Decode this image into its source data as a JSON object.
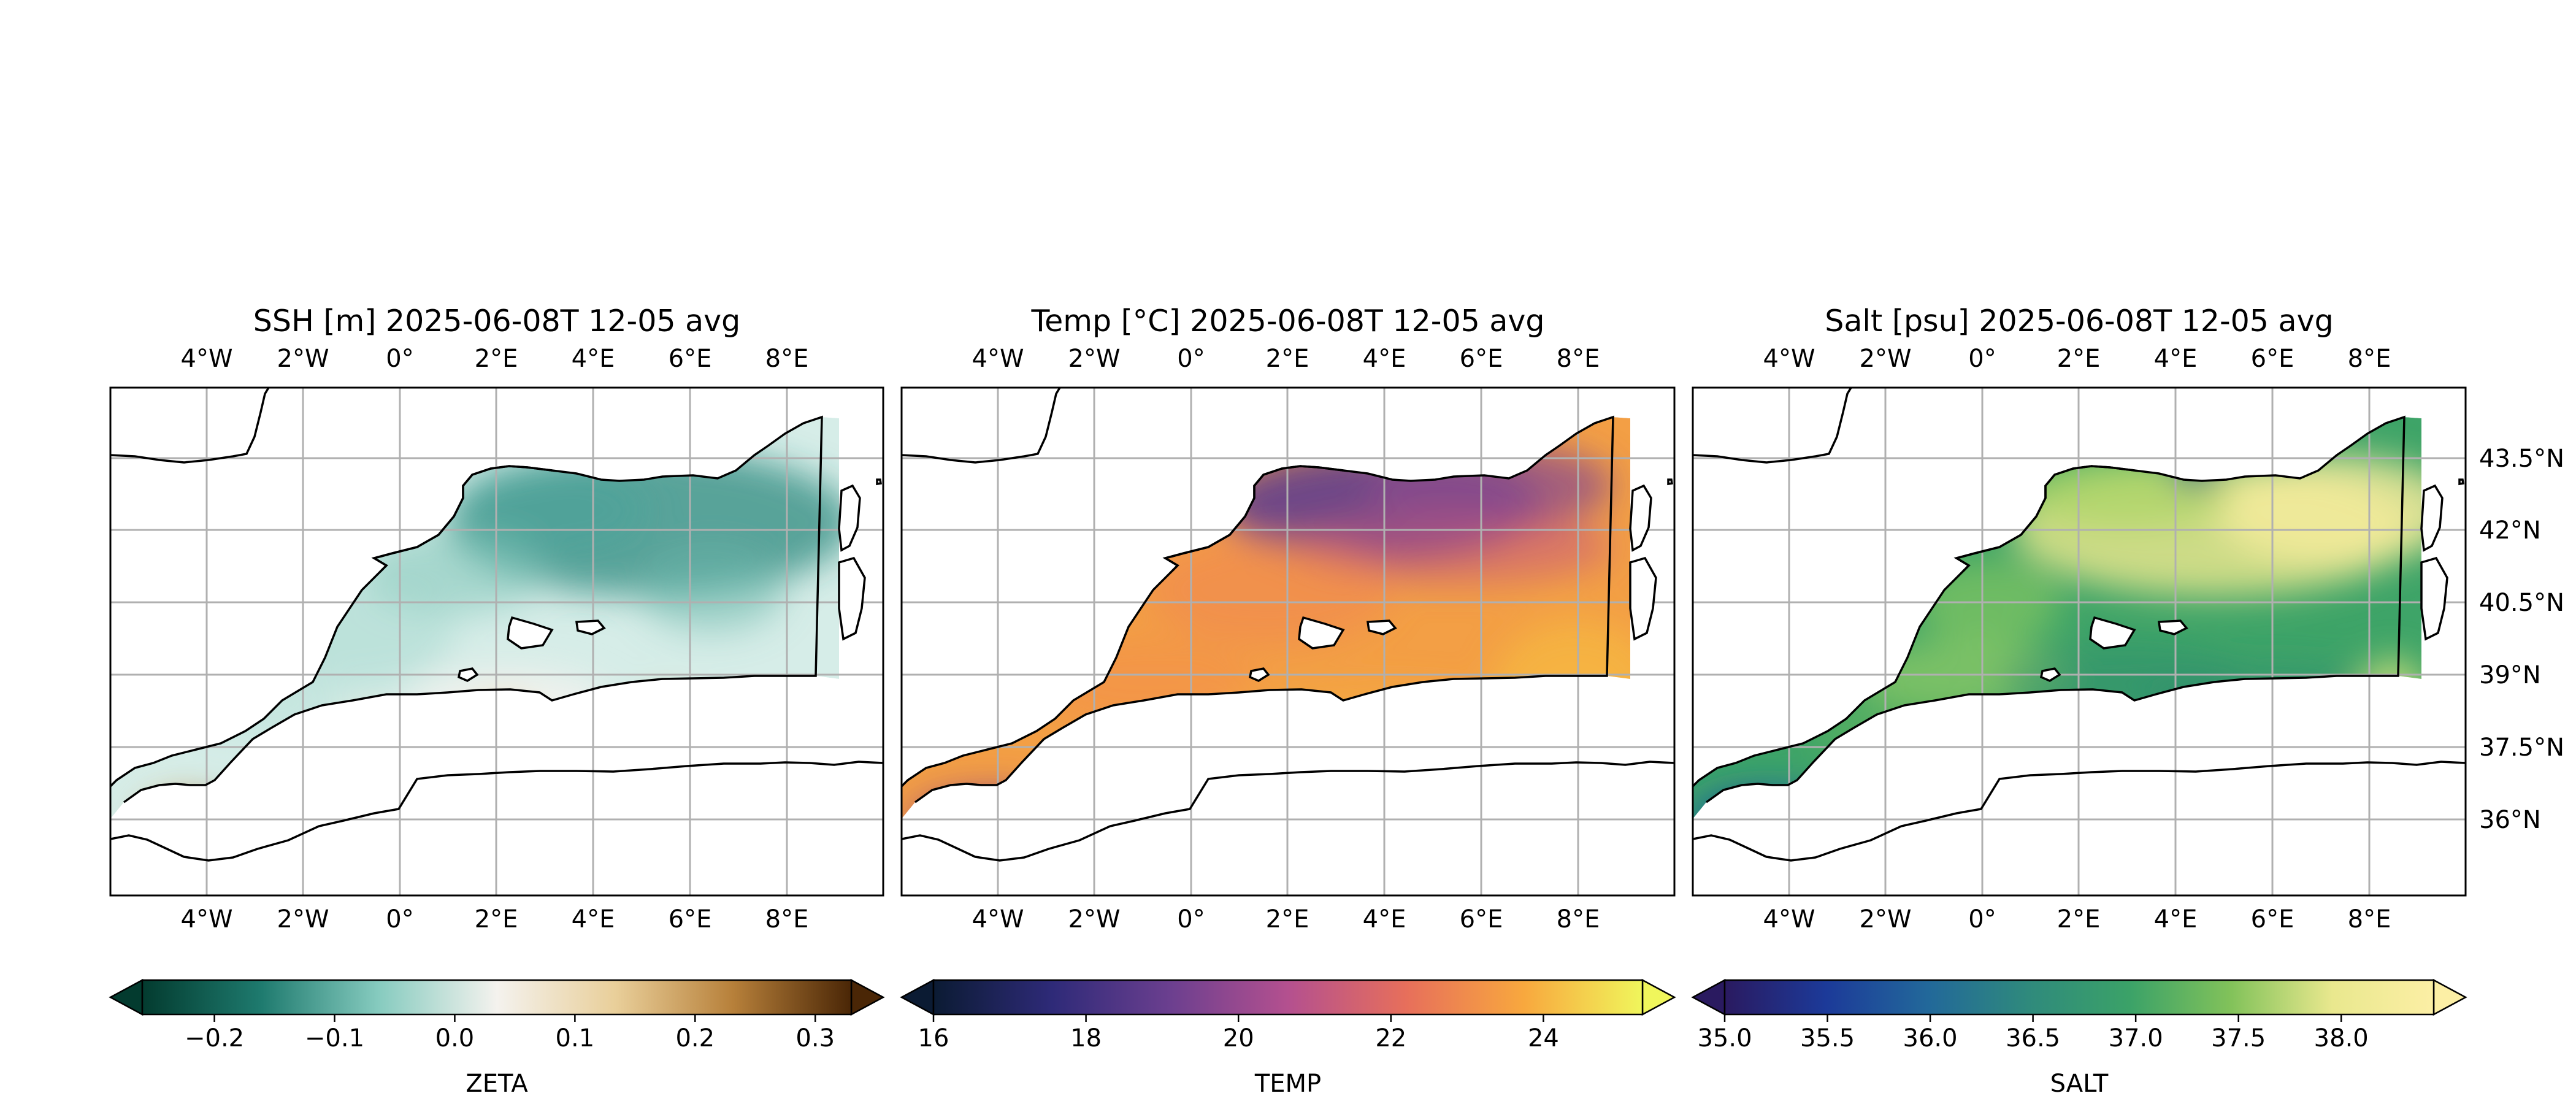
{
  "figure": {
    "panels": [
      {
        "id": "ssh",
        "title": "SSH [m] 2025-06-08T 12-05 avg",
        "colorbar": {
          "label": "ZETA",
          "ticks": [
            "−0.2",
            "−0.1",
            "0.0",
            "0.1",
            "0.2",
            "0.3"
          ],
          "tick_values": [
            -0.2,
            -0.1,
            0.0,
            0.1,
            0.2,
            0.3
          ],
          "range": [
            -0.26,
            0.33
          ],
          "colormap": [
            "#033b2f",
            "#1e7a6e",
            "#86cbbf",
            "#f4f2ee",
            "#e9cf9a",
            "#b7803a",
            "#4a2606"
          ],
          "extend": "both"
        }
      },
      {
        "id": "temp",
        "title": "Temp [°C] 2025-06-08T 12-05 avg",
        "colorbar": {
          "label": "TEMP",
          "ticks": [
            "16",
            "18",
            "20",
            "22",
            "24"
          ],
          "tick_values": [
            16,
            18,
            20,
            22,
            24
          ],
          "range": [
            16,
            25.3
          ],
          "colormap": [
            "#0b1b33",
            "#2e2a78",
            "#6b3f8f",
            "#b4508f",
            "#e76f5b",
            "#f8a83e",
            "#f0f65c"
          ],
          "extend": "both"
        }
      },
      {
        "id": "salt",
        "title": "Salt [psu] 2025-06-08T 12-05 avg",
        "colorbar": {
          "label": "SALT",
          "ticks": [
            "35.0",
            "35.5",
            "36.0",
            "36.5",
            "37.0",
            "37.5",
            "38.0"
          ],
          "tick_values": [
            35.0,
            35.5,
            36.0,
            36.5,
            37.0,
            37.5,
            38.0
          ],
          "range": [
            35.0,
            38.45
          ],
          "colormap": [
            "#2a1a60",
            "#1c3a99",
            "#22689a",
            "#2f8a7c",
            "#3ba268",
            "#82c25a",
            "#e9e88e",
            "#fcefa5"
          ],
          "extend": "both"
        }
      }
    ],
    "lon_labels": [
      "4°W",
      "2°W",
      "0°",
      "2°E",
      "4°E",
      "6°E",
      "8°E"
    ],
    "lat_labels": [
      "43.5°N",
      "42°N",
      "40.5°N",
      "39°N",
      "37.5°N",
      "36°N"
    ],
    "grid": true,
    "colors": {
      "land": "#ffffff",
      "coast": "#000000",
      "grid": "#b0b0b0"
    }
  }
}
